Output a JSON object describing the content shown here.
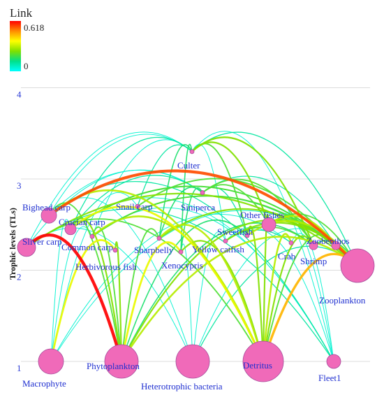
{
  "legend": {
    "title": "Link",
    "max_label": "0.618",
    "min_label": "0",
    "colors": [
      "#ff0000",
      "#ff8c00",
      "#ffff00",
      "#7fe000",
      "#00e08a",
      "#00ffff"
    ]
  },
  "axis": {
    "title": "Trophic levels (TLs)",
    "ticks": [
      {
        "value": 1,
        "label": "1"
      },
      {
        "value": 2,
        "label": "2"
      },
      {
        "value": 3,
        "label": "3"
      },
      {
        "value": 4,
        "label": "4"
      }
    ]
  },
  "nodes": [
    {
      "id": "macrophyte",
      "label": "Macrophyte",
      "tl": 1.0
    },
    {
      "id": "phytoplankton",
      "label": "Phytoplankton",
      "tl": 1.0
    },
    {
      "id": "heterotrophic-bacteria",
      "label": "Heterotrophic bacteria",
      "tl": 1.0
    },
    {
      "id": "detritus",
      "label": "Detritus",
      "tl": 1.0
    },
    {
      "id": "fleet1",
      "label": "Fleet1",
      "tl": 1.0
    },
    {
      "id": "zooplankton",
      "label": "Zooplankton",
      "tl": 2.05
    },
    {
      "id": "sliver-carp",
      "label": "Sliver carp",
      "tl": 2.25
    },
    {
      "id": "bighead-carp",
      "label": "Bighead carp",
      "tl": 2.6
    },
    {
      "id": "crucian-carp",
      "label": "Crucian carp",
      "tl": 2.45
    },
    {
      "id": "common-carp",
      "label": "Common carp",
      "tl": 2.37
    },
    {
      "id": "herbivorous-fish",
      "label": "Herbivorous fish",
      "tl": 2.22
    },
    {
      "id": "snail-carp",
      "label": "Snail carp",
      "tl": 2.7
    },
    {
      "id": "sharpbelly",
      "label": "Sharpbelly",
      "tl": 2.35
    },
    {
      "id": "xenocypris",
      "label": "Xenocypris",
      "tl": 2.2
    },
    {
      "id": "yellow-catfish",
      "label": "Yellow catfish",
      "tl": 2.32
    },
    {
      "id": "siniperca",
      "label": "Siniperca",
      "tl": 2.85
    },
    {
      "id": "culter",
      "label": "Culter",
      "tl": 3.3
    },
    {
      "id": "other-fishes",
      "label": "Other fishes",
      "tl": 2.5
    },
    {
      "id": "sweetfish",
      "label": "Sweetfish",
      "tl": 2.38
    },
    {
      "id": "crab",
      "label": "Crab",
      "tl": 2.3
    },
    {
      "id": "shrimp",
      "label": "Shrimp",
      "tl": 2.27
    },
    {
      "id": "zoobenthos",
      "label": "Zoobenthos",
      "tl": 2.27
    }
  ],
  "links": [
    {
      "from": "phytoplankton",
      "to": "sliver-carp",
      "value": 0.618
    },
    {
      "from": "phytoplankton",
      "to": "bighead-carp",
      "value": 0.2
    },
    {
      "from": "phytoplankton",
      "to": "crucian-carp",
      "value": 0.25
    },
    {
      "from": "phytoplankton",
      "to": "common-carp",
      "value": 0.2
    },
    {
      "from": "phytoplankton",
      "to": "herbivorous-fish",
      "value": 0.25
    },
    {
      "from": "phytoplankton",
      "to": "sharpbelly",
      "value": 0.2
    },
    {
      "from": "phytoplankton",
      "to": "xenocypris",
      "value": 0.35
    },
    {
      "from": "phytoplankton",
      "to": "zooplankton",
      "value": 0.3
    },
    {
      "from": "phytoplankton",
      "to": "shrimp",
      "value": 0.15
    },
    {
      "from": "phytoplankton",
      "to": "zoobenthos",
      "value": 0.25
    },
    {
      "from": "phytoplankton",
      "to": "sweetfish",
      "value": 0.15
    },
    {
      "from": "macrophyte",
      "to": "herbivorous-fish",
      "value": 0.35
    },
    {
      "from": "macrophyte",
      "to": "crab",
      "value": 0.05
    },
    {
      "from": "macrophyte",
      "to": "crucian-carp",
      "value": 0.05
    },
    {
      "from": "macrophyte",
      "to": "snail-carp",
      "value": 0.05
    },
    {
      "from": "macrophyte",
      "to": "common-carp",
      "value": 0.05
    },
    {
      "from": "macrophyte",
      "to": "zoobenthos",
      "value": 0.05
    },
    {
      "from": "detritus",
      "to": "zooplankton",
      "value": 0.45
    },
    {
      "from": "detritus",
      "to": "crab",
      "value": 0.3
    },
    {
      "from": "detritus",
      "to": "shrimp",
      "value": 0.25
    },
    {
      "from": "detritus",
      "to": "zoobenthos",
      "value": 0.2
    },
    {
      "from": "detritus",
      "to": "crucian-carp",
      "value": 0.35
    },
    {
      "from": "detritus",
      "to": "common-carp",
      "value": 0.3
    },
    {
      "from": "detritus",
      "to": "xenocypris",
      "value": 0.25
    },
    {
      "from": "detritus",
      "to": "sharpbelly",
      "value": 0.3
    },
    {
      "from": "detritus",
      "to": "sliver-carp",
      "value": 0.2
    },
    {
      "from": "detritus",
      "to": "bighead-carp",
      "value": 0.3
    },
    {
      "from": "detritus",
      "to": "sweetfish",
      "value": 0.25
    },
    {
      "from": "detritus",
      "to": "other-fishes",
      "value": 0.25
    },
    {
      "from": "heterotrophic-bacteria",
      "to": "zooplankton",
      "value": 0.1
    },
    {
      "from": "heterotrophic-bacteria",
      "to": "sliver-carp",
      "value": 0.05
    },
    {
      "from": "heterotrophic-bacteria",
      "to": "bighead-carp",
      "value": 0.05
    },
    {
      "from": "heterotrophic-bacteria",
      "to": "zoobenthos",
      "value": 0.05
    },
    {
      "from": "heterotrophic-bacteria",
      "to": "xenocypris",
      "value": 0.05
    },
    {
      "from": "heterotrophic-bacteria",
      "to": "yellow-catfish",
      "value": 0.05
    },
    {
      "from": "zooplankton",
      "to": "bighead-carp",
      "value": 0.55
    },
    {
      "from": "zooplankton",
      "to": "sliver-carp",
      "value": 0.25
    },
    {
      "from": "zooplankton",
      "to": "crucian-carp",
      "value": 0.2
    },
    {
      "from": "zooplankton",
      "to": "sweetfish",
      "value": 0.3
    },
    {
      "from": "zooplankton",
      "to": "sharpbelly",
      "value": 0.25
    },
    {
      "from": "zooplankton",
      "to": "other-fishes",
      "value": 0.2
    },
    {
      "from": "zooplankton",
      "to": "shrimp",
      "value": 0.15
    },
    {
      "from": "zooplankton",
      "to": "culter",
      "value": 0.1
    },
    {
      "from": "zooplankton",
      "to": "common-carp",
      "value": 0.15
    },
    {
      "from": "zoobenthos",
      "to": "snail-carp",
      "value": 0.2
    },
    {
      "from": "zoobenthos",
      "to": "common-carp",
      "value": 0.2
    },
    {
      "from": "zoobenthos",
      "to": "yellow-catfish",
      "value": 0.25
    },
    {
      "from": "zoobenthos",
      "to": "other-fishes",
      "value": 0.3
    },
    {
      "from": "zoobenthos",
      "to": "crucian-carp",
      "value": 0.15
    },
    {
      "from": "zoobenthos",
      "to": "siniperca",
      "value": 0.1
    },
    {
      "from": "shrimp",
      "to": "culter",
      "value": 0.25
    },
    {
      "from": "shrimp",
      "to": "siniperca",
      "value": 0.2
    },
    {
      "from": "shrimp",
      "to": "yellow-catfish",
      "value": 0.2
    },
    {
      "from": "shrimp",
      "to": "other-fishes",
      "value": 0.2
    },
    {
      "from": "crab",
      "to": "yellow-catfish",
      "value": 0.1
    },
    {
      "from": "sharpbelly",
      "to": "culter",
      "value": 0.15
    },
    {
      "from": "sharpbelly",
      "to": "siniperca",
      "value": 0.15
    },
    {
      "from": "xenocypris",
      "to": "culter",
      "value": 0.15
    },
    {
      "from": "xenocypris",
      "to": "siniperca",
      "value": 0.15
    },
    {
      "from": "sweetfish",
      "to": "culter",
      "value": 0.2
    },
    {
      "from": "sweetfish",
      "to": "siniperca",
      "value": 0.1
    },
    {
      "from": "other-fishes",
      "to": "culter",
      "value": 0.25
    },
    {
      "from": "other-fishes",
      "to": "siniperca",
      "value": 0.2
    },
    {
      "from": "crucian-carp",
      "to": "culter",
      "value": 0.1
    },
    {
      "from": "crucian-carp",
      "to": "siniperca",
      "value": 0.1
    },
    {
      "from": "common-carp",
      "to": "culter",
      "value": 0.05
    },
    {
      "from": "sliver-carp",
      "to": "culter",
      "value": 0.05
    },
    {
      "from": "bighead-carp",
      "to": "culter",
      "value": 0.05
    },
    {
      "from": "bighead-carp",
      "to": "siniperca",
      "value": 0.05
    },
    {
      "from": "sliver-carp",
      "to": "siniperca",
      "value": 0.05
    },
    {
      "from": "yellow-catfish",
      "to": "culter",
      "value": 0.05
    },
    {
      "from": "snail-carp",
      "to": "culter",
      "value": 0.1
    },
    {
      "from": "bighead-carp",
      "to": "fleet1",
      "value": 0.1
    },
    {
      "from": "sliver-carp",
      "to": "fleet1",
      "value": 0.1
    },
    {
      "from": "crucian-carp",
      "to": "fleet1",
      "value": 0.05
    },
    {
      "from": "common-carp",
      "to": "fleet1",
      "value": 0.05
    },
    {
      "from": "culter",
      "to": "fleet1",
      "value": 0.05
    },
    {
      "from": "other-fishes",
      "to": "fleet1",
      "value": 0.05
    },
    {
      "from": "yellow-catfish",
      "to": "fleet1",
      "value": 0.05
    },
    {
      "from": "crab",
      "to": "fleet1",
      "value": 0.05
    }
  ]
}
